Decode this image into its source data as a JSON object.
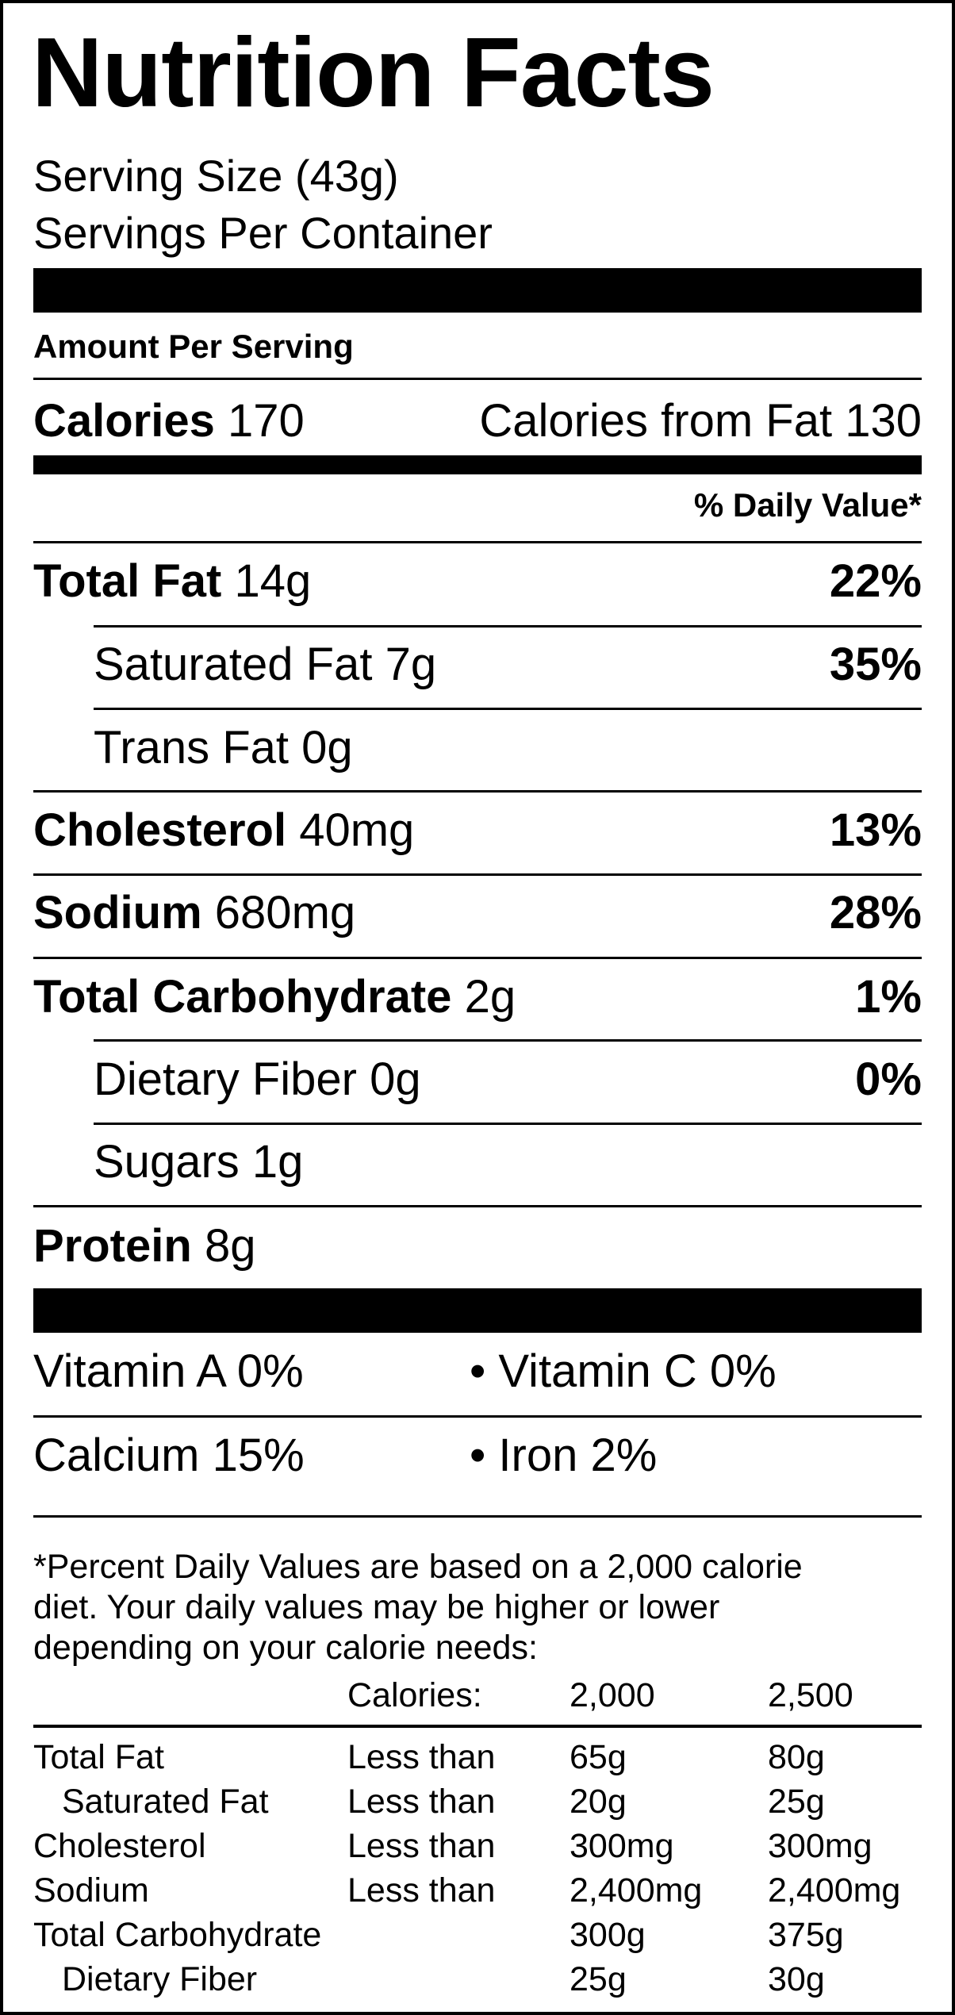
{
  "title": "Nutrition Facts",
  "serving_size": "Serving Size (43g)",
  "servings_per_container": "Servings Per Container",
  "amount_per_serving": "Amount Per Serving",
  "calories": {
    "label": "Calories",
    "value": "170",
    "from_fat_label": "Calories from Fat",
    "from_fat_value": "130"
  },
  "daily_value_header": "% Daily Value*",
  "nutrients": {
    "total_fat": {
      "label": "Total Fat",
      "amount": "14g",
      "dv": "22%"
    },
    "saturated_fat": {
      "label": "Saturated Fat",
      "amount": "7g",
      "dv": "35%"
    },
    "trans_fat": {
      "label": "Trans Fat",
      "amount": "0g"
    },
    "cholesterol": {
      "label": "Cholesterol",
      "amount": "40mg",
      "dv": "13%"
    },
    "sodium": {
      "label": "Sodium",
      "amount": "680mg",
      "dv": "28%"
    },
    "total_carbohydrate": {
      "label": "Total Carbohydrate",
      "amount": "2g",
      "dv": "1%"
    },
    "dietary_fiber": {
      "label": "Dietary Fiber",
      "amount": "0g",
      "dv": "0%"
    },
    "sugars": {
      "label": "Sugars",
      "amount": "1g"
    },
    "protein": {
      "label": "Protein",
      "amount": "8g"
    }
  },
  "vitamins": {
    "vitamin_a": "Vitamin A 0%",
    "vitamin_c": "• Vitamin C 0%",
    "calcium": "Calcium 15%",
    "iron": "• Iron 2%"
  },
  "footnote": {
    "line1": "*Percent Daily Values are based on a 2,000 calorie",
    "line2": "diet. Your daily values may be higher or lower",
    "line3": "depending on your calorie needs:",
    "header": {
      "calories_label": "Calories:",
      "col1": "2,000",
      "col2": "2,500"
    },
    "rows": [
      {
        "name": "Total Fat",
        "qualifier": "Less than",
        "v1": "65g",
        "v2": "80g"
      },
      {
        "name": "Saturated Fat",
        "qualifier": "Less than",
        "v1": "20g",
        "v2": "25g"
      },
      {
        "name": "Cholesterol",
        "qualifier": "Less than",
        "v1": "300mg",
        "v2": "300mg"
      },
      {
        "name": "Sodium",
        "qualifier": "Less than",
        "v1": "2,400mg",
        "v2": "2,400mg"
      },
      {
        "name": "Total Carbohydrate",
        "qualifier": "",
        "v1": "300g",
        "v2": "375g"
      },
      {
        "name": "Dietary Fiber",
        "qualifier": "",
        "v1": "25g",
        "v2": "30g"
      }
    ]
  }
}
